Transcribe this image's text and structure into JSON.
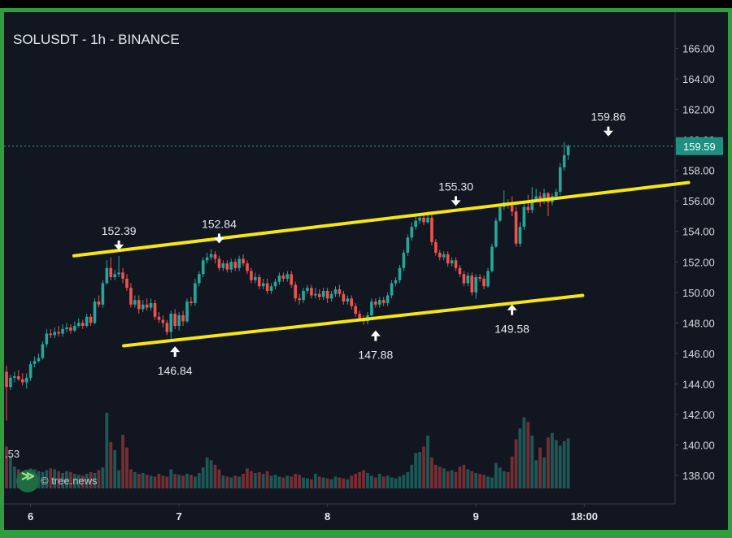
{
  "title": "SOLUSDT - 1h - BINANCE",
  "watermark": "© tree.news",
  "left_cut_label": ".53",
  "current_price": "159.59",
  "colors": {
    "up": "#26a69a",
    "down": "#ef5350",
    "channel": "#f5e614",
    "bg": "#121620",
    "frame": "#2f9e3c"
  },
  "chart_data": {
    "type": "candlestick",
    "title": "SOLUSDT - 1h - BINANCE",
    "ylim": [
      137.2,
      167.2
    ],
    "y_ticks": [
      "138.00",
      "140.00",
      "142.00",
      "144.00",
      "146.00",
      "148.00",
      "150.00",
      "152.00",
      "154.00",
      "156.00",
      "158.00",
      "160.00",
      "162.00",
      "164.00",
      "166.00"
    ],
    "x_ticks": [
      "6",
      "7",
      "8",
      "9",
      "18:00"
    ],
    "x_tick_index": [
      6,
      43,
      80,
      117,
      144
    ],
    "annotations": [
      {
        "label": "152.39",
        "index": 28,
        "price": 152.39,
        "dir": "down"
      },
      {
        "label": "146.84",
        "index": 42,
        "price": 146.84,
        "dir": "up"
      },
      {
        "label": "152.84",
        "index": 53,
        "price": 152.84,
        "dir": "down"
      },
      {
        "label": "147.88",
        "index": 92,
        "price": 147.88,
        "dir": "up"
      },
      {
        "label": "155.30",
        "index": 112,
        "price": 155.3,
        "dir": "down"
      },
      {
        "label": "149.58",
        "index": 126,
        "price": 149.58,
        "dir": "up"
      },
      {
        "label": "159.86",
        "index": 150,
        "price": 159.86,
        "dir": "down"
      }
    ],
    "channel_lines": [
      {
        "i1": 16.8,
        "p1": 152.4,
        "i2": 170,
        "p2": 157.2
      },
      {
        "i1": 29.2,
        "p1": 146.5,
        "i2": 143.6,
        "p2": 149.8
      }
    ],
    "candles": [
      [
        144.8,
        143.8,
        145.2,
        141.6
      ],
      [
        143.8,
        144.4,
        144.6,
        143.6
      ],
      [
        144.4,
        144.5,
        144.8,
        144.1
      ],
      [
        144.5,
        144.3,
        144.9,
        144.2
      ],
      [
        144.3,
        144.1,
        144.7,
        143.9
      ],
      [
        144.1,
        144.4,
        144.7,
        143.7
      ],
      [
        144.4,
        145.3,
        145.5,
        144.2
      ],
      [
        145.3,
        145.5,
        145.8,
        145.1
      ],
      [
        145.5,
        145.7,
        146.0,
        145.4
      ],
      [
        145.7,
        146.6,
        146.8,
        145.6
      ],
      [
        146.6,
        147.3,
        147.6,
        146.4
      ],
      [
        147.3,
        147.2,
        147.6,
        147.0
      ],
      [
        147.2,
        147.4,
        147.7,
        147.0
      ],
      [
        147.4,
        147.3,
        147.8,
        147.1
      ],
      [
        147.3,
        147.6,
        147.9,
        147.1
      ],
      [
        147.6,
        147.7,
        148.0,
        147.4
      ],
      [
        147.7,
        147.5,
        147.9,
        147.3
      ],
      [
        147.5,
        147.8,
        148.1,
        147.4
      ],
      [
        147.8,
        148.0,
        148.3,
        147.7
      ],
      [
        148.0,
        147.8,
        148.2,
        147.6
      ],
      [
        147.8,
        148.4,
        148.6,
        147.7
      ],
      [
        148.4,
        148.0,
        148.6,
        147.8
      ],
      [
        148.0,
        149.4,
        149.6,
        147.9
      ],
      [
        149.4,
        149.2,
        149.8,
        149.0
      ],
      [
        149.2,
        150.6,
        150.8,
        149.0
      ],
      [
        150.6,
        151.6,
        152.1,
        150.5
      ],
      [
        151.6,
        151.0,
        152.3,
        150.8
      ],
      [
        151.0,
        151.2,
        151.5,
        150.8
      ],
      [
        151.2,
        151.3,
        152.39,
        151.0
      ],
      [
        151.3,
        150.9,
        151.6,
        150.6
      ],
      [
        150.9,
        150.3,
        151.2,
        150.1
      ],
      [
        150.3,
        149.2,
        150.6,
        149.0
      ],
      [
        149.2,
        149.5,
        149.8,
        149.0
      ],
      [
        149.5,
        148.9,
        149.8,
        148.6
      ],
      [
        148.9,
        149.2,
        149.5,
        148.7
      ],
      [
        149.2,
        149.0,
        149.6,
        148.8
      ],
      [
        149.0,
        149.3,
        149.6,
        148.8
      ],
      [
        149.3,
        148.4,
        149.5,
        148.2
      ],
      [
        148.4,
        148.2,
        148.7,
        148.0
      ],
      [
        148.2,
        148.0,
        148.5,
        147.7
      ],
      [
        148.0,
        147.4,
        148.2,
        147.2
      ],
      [
        147.4,
        148.6,
        148.8,
        146.84
      ],
      [
        148.6,
        147.8,
        148.9,
        147.6
      ],
      [
        147.8,
        148.5,
        148.7,
        147.5
      ],
      [
        148.5,
        148.1,
        148.8,
        147.8
      ],
      [
        148.1,
        149.4,
        149.6,
        148.0
      ],
      [
        149.4,
        149.3,
        149.7,
        149.1
      ],
      [
        149.3,
        150.6,
        150.9,
        149.1
      ],
      [
        150.6,
        151.2,
        151.4,
        150.4
      ],
      [
        151.2,
        152.1,
        152.3,
        151.0
      ],
      [
        152.1,
        152.3,
        152.6,
        151.9
      ],
      [
        152.3,
        152.5,
        152.84,
        152.1
      ],
      [
        152.5,
        152.2,
        152.7,
        151.9
      ],
      [
        152.2,
        151.6,
        152.4,
        151.4
      ],
      [
        151.6,
        151.9,
        152.1,
        151.4
      ],
      [
        151.9,
        151.5,
        152.1,
        151.3
      ],
      [
        151.5,
        152.0,
        152.2,
        151.3
      ],
      [
        152.0,
        151.6,
        152.2,
        151.4
      ],
      [
        151.6,
        152.2,
        152.4,
        151.4
      ],
      [
        152.2,
        151.9,
        152.5,
        151.7
      ],
      [
        151.9,
        151.4,
        152.1,
        151.2
      ],
      [
        151.4,
        150.8,
        151.6,
        150.6
      ],
      [
        150.8,
        151.0,
        151.3,
        150.6
      ],
      [
        151.0,
        150.4,
        151.2,
        150.2
      ],
      [
        150.4,
        150.6,
        150.9,
        150.2
      ],
      [
        150.6,
        150.1,
        150.9,
        149.9
      ],
      [
        150.1,
        150.4,
        150.6,
        149.9
      ],
      [
        150.4,
        150.7,
        150.9,
        150.2
      ],
      [
        150.7,
        151.1,
        151.3,
        150.5
      ],
      [
        151.1,
        150.9,
        151.3,
        150.7
      ],
      [
        150.9,
        151.2,
        151.4,
        150.7
      ],
      [
        151.2,
        150.5,
        151.4,
        150.3
      ],
      [
        150.5,
        149.6,
        150.7,
        149.4
      ],
      [
        149.6,
        149.5,
        149.9,
        149.2
      ],
      [
        149.5,
        150.1,
        150.3,
        149.3
      ],
      [
        150.1,
        150.3,
        150.5,
        149.9
      ],
      [
        150.3,
        149.8,
        150.5,
        149.6
      ],
      [
        149.8,
        149.9,
        150.3,
        149.6
      ],
      [
        149.9,
        149.7,
        150.2,
        149.5
      ],
      [
        149.7,
        150.1,
        150.3,
        149.5
      ],
      [
        150.1,
        149.6,
        150.3,
        149.3
      ],
      [
        149.6,
        149.9,
        150.1,
        149.4
      ],
      [
        149.9,
        150.2,
        150.4,
        149.7
      ],
      [
        150.2,
        149.9,
        150.5,
        149.7
      ],
      [
        149.9,
        149.4,
        150.1,
        149.2
      ],
      [
        149.4,
        149.6,
        149.8,
        149.2
      ],
      [
        149.6,
        149.1,
        149.8,
        148.9
      ],
      [
        149.1,
        148.6,
        149.3,
        148.4
      ],
      [
        148.6,
        148.3,
        148.8,
        148.1
      ],
      [
        148.3,
        148.1,
        148.5,
        147.88
      ],
      [
        148.1,
        148.5,
        148.7,
        147.9
      ],
      [
        148.5,
        149.4,
        149.6,
        148.3
      ],
      [
        149.4,
        149.2,
        149.6,
        149.0
      ],
      [
        149.2,
        149.5,
        149.7,
        149.0
      ],
      [
        149.5,
        149.3,
        149.7,
        149.1
      ],
      [
        149.3,
        149.8,
        150.0,
        149.1
      ],
      [
        149.8,
        150.6,
        150.8,
        149.6
      ],
      [
        150.6,
        150.8,
        151.0,
        150.4
      ],
      [
        150.8,
        151.6,
        151.8,
        150.6
      ],
      [
        151.6,
        152.6,
        152.8,
        151.4
      ],
      [
        152.6,
        153.6,
        153.8,
        152.4
      ],
      [
        153.6,
        154.3,
        154.6,
        153.4
      ],
      [
        154.3,
        154.7,
        155.0,
        154.1
      ],
      [
        154.7,
        154.9,
        155.2,
        154.5
      ],
      [
        154.9,
        154.6,
        155.1,
        154.4
      ],
      [
        154.6,
        154.9,
        155.3,
        154.5
      ],
      [
        154.9,
        153.3,
        155.1,
        153.1
      ],
      [
        153.3,
        152.6,
        153.5,
        152.4
      ],
      [
        152.6,
        152.3,
        152.8,
        152.1
      ],
      [
        152.3,
        152.5,
        152.7,
        152.1
      ],
      [
        152.5,
        151.9,
        152.7,
        151.7
      ],
      [
        151.9,
        152.1,
        152.3,
        151.7
      ],
      [
        152.1,
        151.6,
        152.3,
        151.4
      ],
      [
        151.6,
        151.2,
        151.8,
        151.0
      ],
      [
        151.2,
        150.6,
        151.4,
        150.4
      ],
      [
        150.6,
        151.1,
        151.3,
        150.4
      ],
      [
        151.1,
        150.0,
        151.3,
        149.8
      ],
      [
        150.0,
        151.0,
        151.2,
        149.58
      ],
      [
        151.0,
        150.9,
        151.2,
        150.7
      ],
      [
        150.9,
        150.4,
        151.1,
        150.2
      ],
      [
        150.4,
        151.4,
        151.6,
        150.3
      ],
      [
        151.4,
        153.0,
        153.2,
        151.3
      ],
      [
        153.0,
        154.7,
        154.9,
        152.9
      ],
      [
        154.7,
        155.6,
        155.8,
        154.6
      ],
      [
        155.6,
        155.9,
        156.7,
        155.4
      ],
      [
        155.9,
        155.7,
        156.1,
        155.5
      ],
      [
        155.7,
        155.3,
        156.3,
        155.0
      ],
      [
        155.3,
        153.2,
        155.6,
        153.0
      ],
      [
        153.2,
        154.3,
        154.6,
        153.0
      ],
      [
        154.3,
        155.6,
        156.0,
        154.1
      ],
      [
        155.6,
        155.4,
        156.4,
        155.2
      ],
      [
        155.4,
        156.1,
        156.9,
        155.2
      ],
      [
        156.1,
        156.3,
        156.8,
        156.0
      ],
      [
        156.3,
        156.0,
        156.6,
        155.6
      ],
      [
        156.0,
        156.5,
        156.8,
        155.8
      ],
      [
        156.5,
        155.9,
        156.6,
        155.0
      ],
      [
        155.9,
        156.3,
        156.5,
        155.7
      ],
      [
        156.3,
        156.6,
        156.8,
        156.1
      ],
      [
        156.6,
        158.2,
        158.5,
        156.4
      ],
      [
        158.2,
        159.0,
        159.86,
        158.0
      ],
      [
        159.0,
        159.59,
        159.7,
        158.7
      ]
    ],
    "volume": [
      4.6,
      3.6,
      2.4,
      2.1,
      1.8,
      2.0,
      2.2,
      2.1,
      1.9,
      1.8,
      2.0,
      2.2,
      2.1,
      1.9,
      1.7,
      1.9,
      1.8,
      1.6,
      1.5,
      1.4,
      1.6,
      1.8,
      1.7,
      2.0,
      2.3,
      8.3,
      5.1,
      4.2,
      2.0,
      5.9,
      4.5,
      2.1,
      1.8,
      1.6,
      1.7,
      1.5,
      1.4,
      1.3,
      1.6,
      1.4,
      1.3,
      2.1,
      1.6,
      1.5,
      1.4,
      1.6,
      1.5,
      1.3,
      1.7,
      2.3,
      3.4,
      3.1,
      2.6,
      2.1,
      1.4,
      1.3,
      1.2,
      1.4,
      1.3,
      1.6,
      2.2,
      1.9,
      1.7,
      1.8,
      1.6,
      1.9,
      1.4,
      1.5,
      1.3,
      1.2,
      1.4,
      1.3,
      1.6,
      1.5,
      1.2,
      1.1,
      1.0,
      1.6,
      1.3,
      1.2,
      1.1,
      1.0,
      1.3,
      1.2,
      1.1,
      1.0,
      1.4,
      1.6,
      1.8,
      2.0,
      1.7,
      1.4,
      1.2,
      1.6,
      1.3,
      1.4,
      1.2,
      1.1,
      1.3,
      1.5,
      1.8,
      2.6,
      3.9,
      4.0,
      4.6,
      5.8,
      3.4,
      2.6,
      2.4,
      2.2,
      1.9,
      2.0,
      1.8,
      2.4,
      2.6,
      2.1,
      1.9,
      1.7,
      1.6,
      1.5,
      1.3,
      1.2,
      2.8,
      2.3,
      1.9,
      1.8,
      3.5,
      5.4,
      6.6,
      7.8,
      7.3,
      5.8,
      3.1,
      4.5,
      3.4,
      5.6,
      6.1,
      5.3,
      4.7,
      5.2,
      5.5,
      4.1,
      3.6,
      4.0,
      7.3,
      9.3,
      3.6
    ]
  }
}
